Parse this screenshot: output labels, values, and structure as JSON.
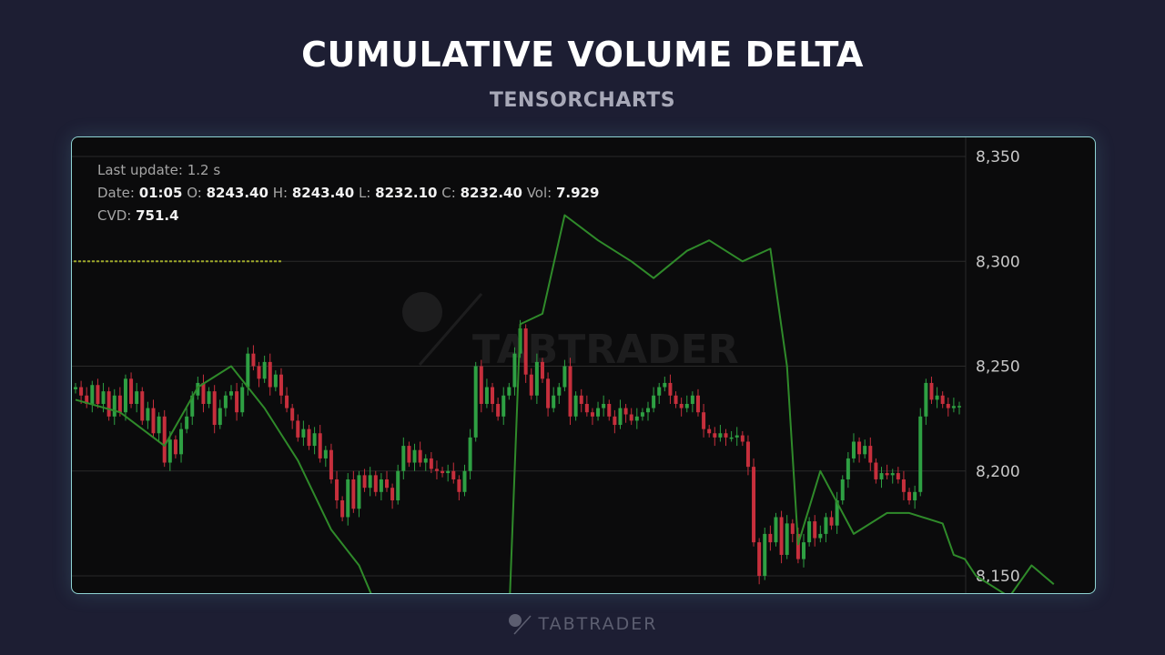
{
  "header": {
    "title": "CUMULATIVE VOLUME DELTA",
    "subtitle": "TENSORCHARTS"
  },
  "info": {
    "last_update_label": "Last update:",
    "last_update_value": "1.2  s",
    "date_label": "Date:",
    "date_value": "01:05",
    "open_label": "O:",
    "open_value": "8243.40",
    "high_label": "H:",
    "high_value": "8243.40",
    "low_label": "L:",
    "low_value": "8232.10",
    "close_label": "C:",
    "close_value": "8232.40",
    "vol_label": "Vol:",
    "vol_value": "7.929",
    "cvd_label": "CVD:",
    "cvd_value": "751.4"
  },
  "watermark": "TABTRADER",
  "footer": {
    "brand": "TABTRADER"
  },
  "colors": {
    "up": "#2ea043",
    "down": "#c62f3c",
    "cvd_line": "#2f8a2a",
    "dotted_line": "#9da82a",
    "grid": "#2a2a2a"
  },
  "chart_data": {
    "type": "candlestick",
    "y_axis": {
      "ticks": [
        8350,
        8300,
        8250,
        8200,
        8150
      ],
      "tick_labels": [
        "8,350",
        "8,300",
        "8,250",
        "8,200",
        "8,150"
      ],
      "range": [
        8143,
        8358
      ],
      "position": "right"
    },
    "grid": true,
    "dotted_level": 8300,
    "price": [
      8240,
      8236,
      8232,
      8241,
      8232,
      8238,
      8226,
      8236,
      8228,
      8244,
      8232,
      8238,
      8224,
      8230,
      8218,
      8226,
      8204,
      8215,
      8208,
      8220,
      8226,
      8236,
      8242,
      8232,
      8238,
      8222,
      8230,
      8236,
      8238,
      8228,
      8240,
      8256,
      8250,
      8244,
      8252,
      8240,
      8246,
      8236,
      8230,
      8224,
      8216,
      8220,
      8212,
      8218,
      8206,
      8210,
      8196,
      8186,
      8178,
      8196,
      8182,
      8198,
      8192,
      8198,
      8190,
      8196,
      8192,
      8186,
      8200,
      8212,
      8204,
      8210,
      8204,
      8206,
      8201,
      8200,
      8199,
      8200,
      8196,
      8190,
      8200,
      8216,
      8250,
      8232,
      8240,
      8232,
      8226,
      8236,
      8240,
      8256,
      8268,
      8246,
      8236,
      8252,
      8244,
      8230,
      8236,
      8240,
      8250,
      8226,
      8236,
      8232,
      8228,
      8226,
      8230,
      8232,
      8226,
      8222,
      8230,
      8227,
      8224,
      8226,
      8228,
      8230,
      8236,
      8240,
      8242,
      8236,
      8232,
      8230,
      8232,
      8236,
      8228,
      8220,
      8218,
      8216,
      8218,
      8216,
      8216,
      8217,
      8214,
      8202,
      8166,
      8150,
      8170,
      8166,
      8178,
      8160,
      8175,
      8170,
      8158,
      8166,
      8176,
      8168,
      8170,
      8178,
      8174,
      8186,
      8196,
      8206,
      8214,
      8208,
      8212,
      8204,
      8196,
      8199,
      8198,
      8199,
      8196,
      8190,
      8186,
      8190,
      8226,
      8242,
      8234,
      8236,
      8232,
      8230,
      8231,
      8231
    ],
    "cvd": {
      "name": "CVD",
      "x_idx": [
        0,
        8,
        16,
        22,
        28,
        34,
        40,
        46,
        51,
        55,
        60,
        66,
        72,
        78,
        80,
        84,
        88,
        94,
        100,
        104,
        110,
        114,
        120,
        125,
        128,
        130,
        134,
        140,
        146,
        150,
        156,
        158,
        160,
        162,
        168,
        172,
        176
      ],
      "y": [
        8234,
        8228,
        8212,
        8240,
        8250,
        8230,
        8205,
        8172,
        8155,
        8130,
        8120,
        8118,
        8120,
        8130,
        8270,
        8275,
        8322,
        8310,
        8300,
        8292,
        8305,
        8310,
        8300,
        8306,
        8250,
        8165,
        8200,
        8170,
        8180,
        8180,
        8175,
        8160,
        8158,
        8150,
        8140,
        8155,
        8146
      ]
    }
  }
}
